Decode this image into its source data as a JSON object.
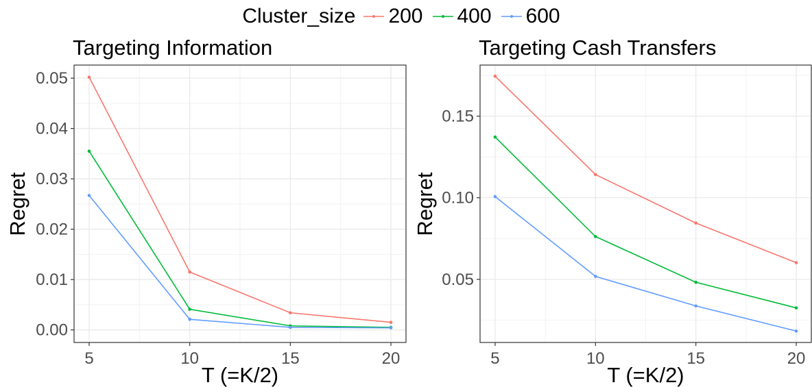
{
  "legend": {
    "title": "Cluster_size",
    "entries": [
      {
        "name": "200",
        "color": "#F8766D"
      },
      {
        "name": "400",
        "color": "#00BA38"
      },
      {
        "name": "600",
        "color": "#619CFF"
      }
    ]
  },
  "chart_data": [
    {
      "type": "line",
      "title": "Targeting Information",
      "xlabel": "T (=K/2)",
      "ylabel": "Regret",
      "x": [
        5,
        10,
        15,
        20
      ],
      "xlim": [
        4.25,
        20.75
      ],
      "ylim": [
        -0.0025,
        0.0526
      ],
      "xticks": [
        5,
        10,
        15,
        20
      ],
      "yticks": [
        0.0,
        0.01,
        0.02,
        0.03,
        0.04,
        0.05
      ],
      "ytick_labels": [
        "0.00",
        "0.01",
        "0.02",
        "0.03",
        "0.04",
        "0.05"
      ],
      "grid": true,
      "series": [
        {
          "name": "200",
          "color": "#F8766D",
          "values": [
            0.0502,
            0.0115,
            0.0034,
            0.0015
          ]
        },
        {
          "name": "400",
          "color": "#00BA38",
          "values": [
            0.0355,
            0.0041,
            0.0008,
            0.0005
          ]
        },
        {
          "name": "600",
          "color": "#619CFF",
          "values": [
            0.0267,
            0.0021,
            0.0005,
            0.0004
          ]
        }
      ]
    },
    {
      "type": "line",
      "title": "Targeting Cash Transfers",
      "xlabel": "T (=K/2)",
      "ylabel": "Regret",
      "x": [
        5,
        10,
        15,
        20
      ],
      "xlim": [
        4.25,
        20.75
      ],
      "ylim": [
        0.0113,
        0.1813
      ],
      "xticks": [
        5,
        10,
        15,
        20
      ],
      "yticks": [
        0.05,
        0.1,
        0.15
      ],
      "ytick_labels": [
        "0.05",
        "0.10",
        "0.15"
      ],
      "grid": true,
      "series": [
        {
          "name": "200",
          "color": "#F8766D",
          "values": [
            0.1745,
            0.1142,
            0.0845,
            0.0602
          ]
        },
        {
          "name": "400",
          "color": "#00BA38",
          "values": [
            0.1372,
            0.0762,
            0.0482,
            0.0325
          ]
        },
        {
          "name": "600",
          "color": "#619CFF",
          "values": [
            0.1007,
            0.0518,
            0.0337,
            0.0183
          ]
        }
      ]
    }
  ]
}
